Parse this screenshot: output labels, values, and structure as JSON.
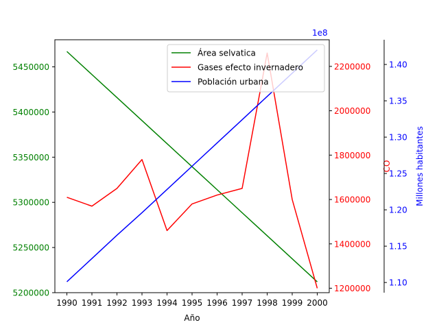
{
  "chart_data": {
    "type": "line",
    "title": "",
    "xlabel": "Año",
    "x": [
      1990,
      1991,
      1992,
      1993,
      1994,
      1995,
      1996,
      1997,
      1998,
      1999,
      2000
    ],
    "x_ticks": [
      "1990",
      "1991",
      "1992",
      "1993",
      "1994",
      "1995",
      "1996",
      "1997",
      "1998",
      "1999",
      "2000"
    ],
    "axes": [
      {
        "id": "left",
        "label": "",
        "color": "#008000",
        "ylim": [
          5200000,
          5480000
        ],
        "ticks": [
          5200000,
          5250000,
          5300000,
          5350000,
          5400000,
          5450000
        ],
        "tick_labels": [
          "5200000",
          "5250000",
          "5300000",
          "5350000",
          "5400000",
          "5450000"
        ]
      },
      {
        "id": "right1",
        "label": "CO",
        "color": "#ff0000",
        "ylim": [
          1180000,
          2320000
        ],
        "ticks": [
          1200000,
          1400000,
          1600000,
          1800000,
          2000000,
          2200000
        ],
        "tick_labels": [
          "1200000",
          "1400000",
          "1600000",
          "1800000",
          "2000000",
          "2200000"
        ]
      },
      {
        "id": "right2",
        "label": "Millones habitantes",
        "color": "#0000ff",
        "scale_label": "1e8",
        "ylim": [
          1.086,
          1.434
        ],
        "ticks": [
          1.1,
          1.15,
          1.2,
          1.25,
          1.3,
          1.35,
          1.4
        ],
        "tick_labels": [
          "1.10",
          "1.15",
          "1.20",
          "1.25",
          "1.30",
          "1.35",
          "1.40"
        ]
      }
    ],
    "series": [
      {
        "name": "Área selvatica",
        "axis": "left",
        "color": "#008000",
        "values": [
          5467000,
          5441500,
          5416000,
          5390500,
          5365000,
          5339500,
          5314000,
          5288500,
          5263000,
          5237500,
          5212000
        ]
      },
      {
        "name": "Gases efecto invernadero",
        "axis": "right1",
        "color": "#ff0000",
        "values": [
          1610000,
          1570000,
          1650000,
          1780000,
          1460000,
          1580000,
          1620000,
          1650000,
          2260000,
          1600000,
          1200000
        ]
      },
      {
        "name": "Población urbana",
        "axis": "right2",
        "color": "#0000ff",
        "values": [
          1.101,
          1.133,
          1.165,
          1.196,
          1.228,
          1.26,
          1.292,
          1.324,
          1.356,
          1.388,
          1.42
        ]
      }
    ],
    "legend": {
      "position": "top-right"
    },
    "grid": false
  }
}
